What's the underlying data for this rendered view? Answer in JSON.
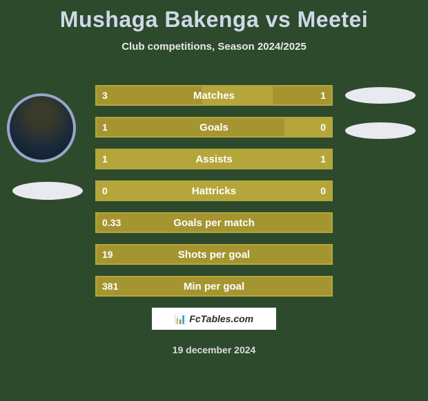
{
  "title": "Mushaga Bakenga vs Meetei",
  "subtitle": "Club competitions, Season 2024/2025",
  "colors": {
    "background": "#2d4a2d",
    "bar_border": "#b5a63c",
    "bar_base": "#b5a63c",
    "bar_fill": "#a59530",
    "title_color": "#d0d8e8",
    "text_color": "#ffffff",
    "oval_color": "#e8eaf0"
  },
  "rows": [
    {
      "label": "Matches",
      "left": "3",
      "right": "1",
      "left_fill_pct": 45,
      "right_fill_pct": 25
    },
    {
      "label": "Goals",
      "left": "1",
      "right": "0",
      "left_fill_pct": 80,
      "right_fill_pct": 0
    },
    {
      "label": "Assists",
      "left": "1",
      "right": "1",
      "left_fill_pct": 0,
      "right_fill_pct": 0
    },
    {
      "label": "Hattricks",
      "left": "0",
      "right": "0",
      "left_fill_pct": 0,
      "right_fill_pct": 0
    },
    {
      "label": "Goals per match",
      "left": "0.33",
      "right": "",
      "left_fill_pct": 100,
      "right_fill_pct": 0
    },
    {
      "label": "Shots per goal",
      "left": "19",
      "right": "",
      "left_fill_pct": 100,
      "right_fill_pct": 0
    },
    {
      "label": "Min per goal",
      "left": "381",
      "right": "",
      "left_fill_pct": 100,
      "right_fill_pct": 0
    }
  ],
  "branding": "FcTables.com",
  "date": "19 december 2024"
}
